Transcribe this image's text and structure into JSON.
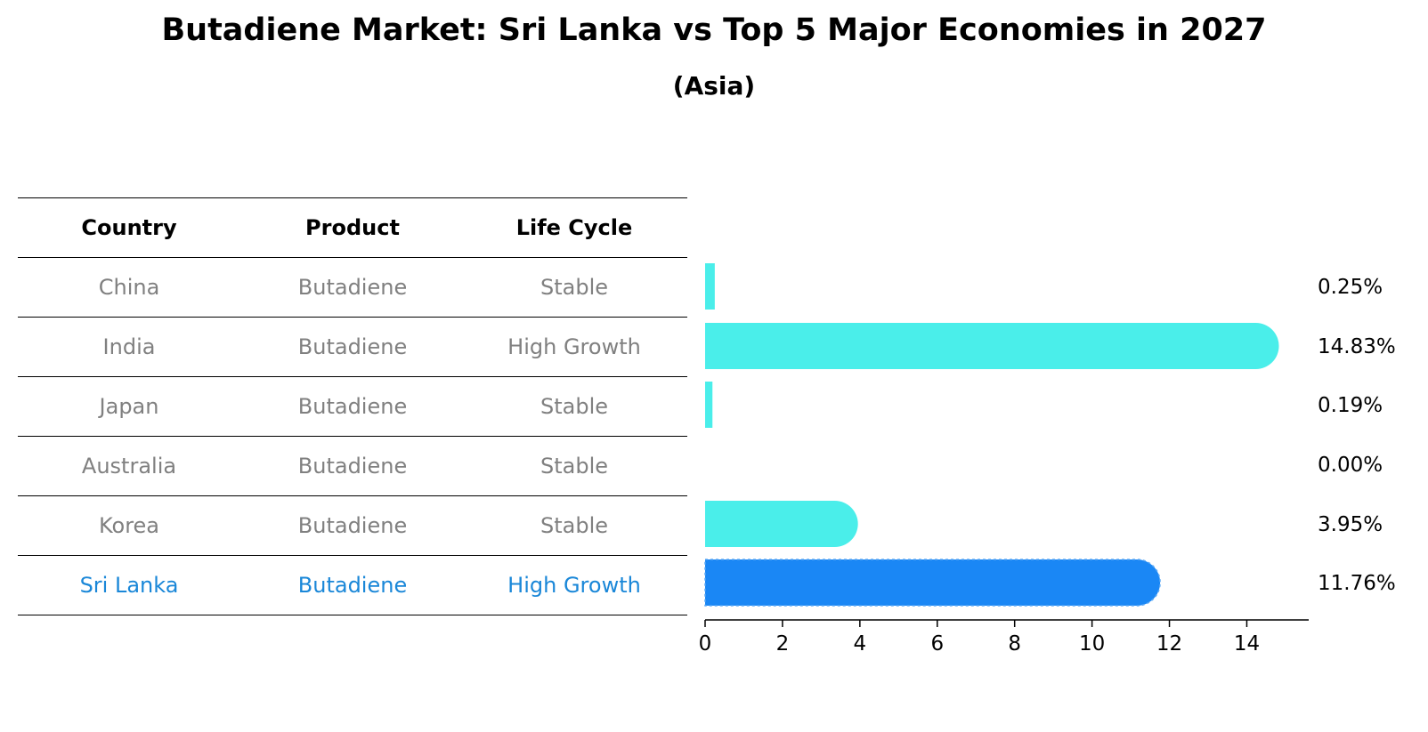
{
  "chart_data": {
    "type": "bar",
    "orientation": "horizontal",
    "title": "Butadiene Market: Sri Lanka vs Top 5 Major Economies in 2027",
    "subtitle": "(Asia)",
    "xlim": [
      0,
      15.6
    ],
    "xticks": [
      0,
      2,
      4,
      6,
      8,
      10,
      12,
      14
    ],
    "table_headers": [
      "Country",
      "Product",
      "Life Cycle"
    ],
    "rows": [
      {
        "country": "China",
        "product": "Butadiene",
        "life_cycle": "Stable",
        "value": 0.25,
        "label": "0.25%",
        "highlight": false
      },
      {
        "country": "India",
        "product": "Butadiene",
        "life_cycle": "High Growth",
        "value": 14.83,
        "label": "14.83%",
        "highlight": false
      },
      {
        "country": "Japan",
        "product": "Butadiene",
        "life_cycle": "Stable",
        "value": 0.19,
        "label": "0.19%",
        "highlight": false
      },
      {
        "country": "Australia",
        "product": "Butadiene",
        "life_cycle": "Stable",
        "value": 0.0,
        "label": "0.00%",
        "highlight": false
      },
      {
        "country": "Korea",
        "product": "Butadiene",
        "life_cycle": "Stable",
        "value": 3.95,
        "label": "3.95%",
        "highlight": false
      },
      {
        "country": "Sri Lanka",
        "product": "Butadiene",
        "life_cycle": "High Growth",
        "value": 11.76,
        "label": "11.76%",
        "highlight": true
      }
    ],
    "colors": {
      "bar": "#4aeeea",
      "highlight_bar": "#1a87f5",
      "highlight_text": "#1a87d8",
      "muted_text": "#808080"
    }
  }
}
